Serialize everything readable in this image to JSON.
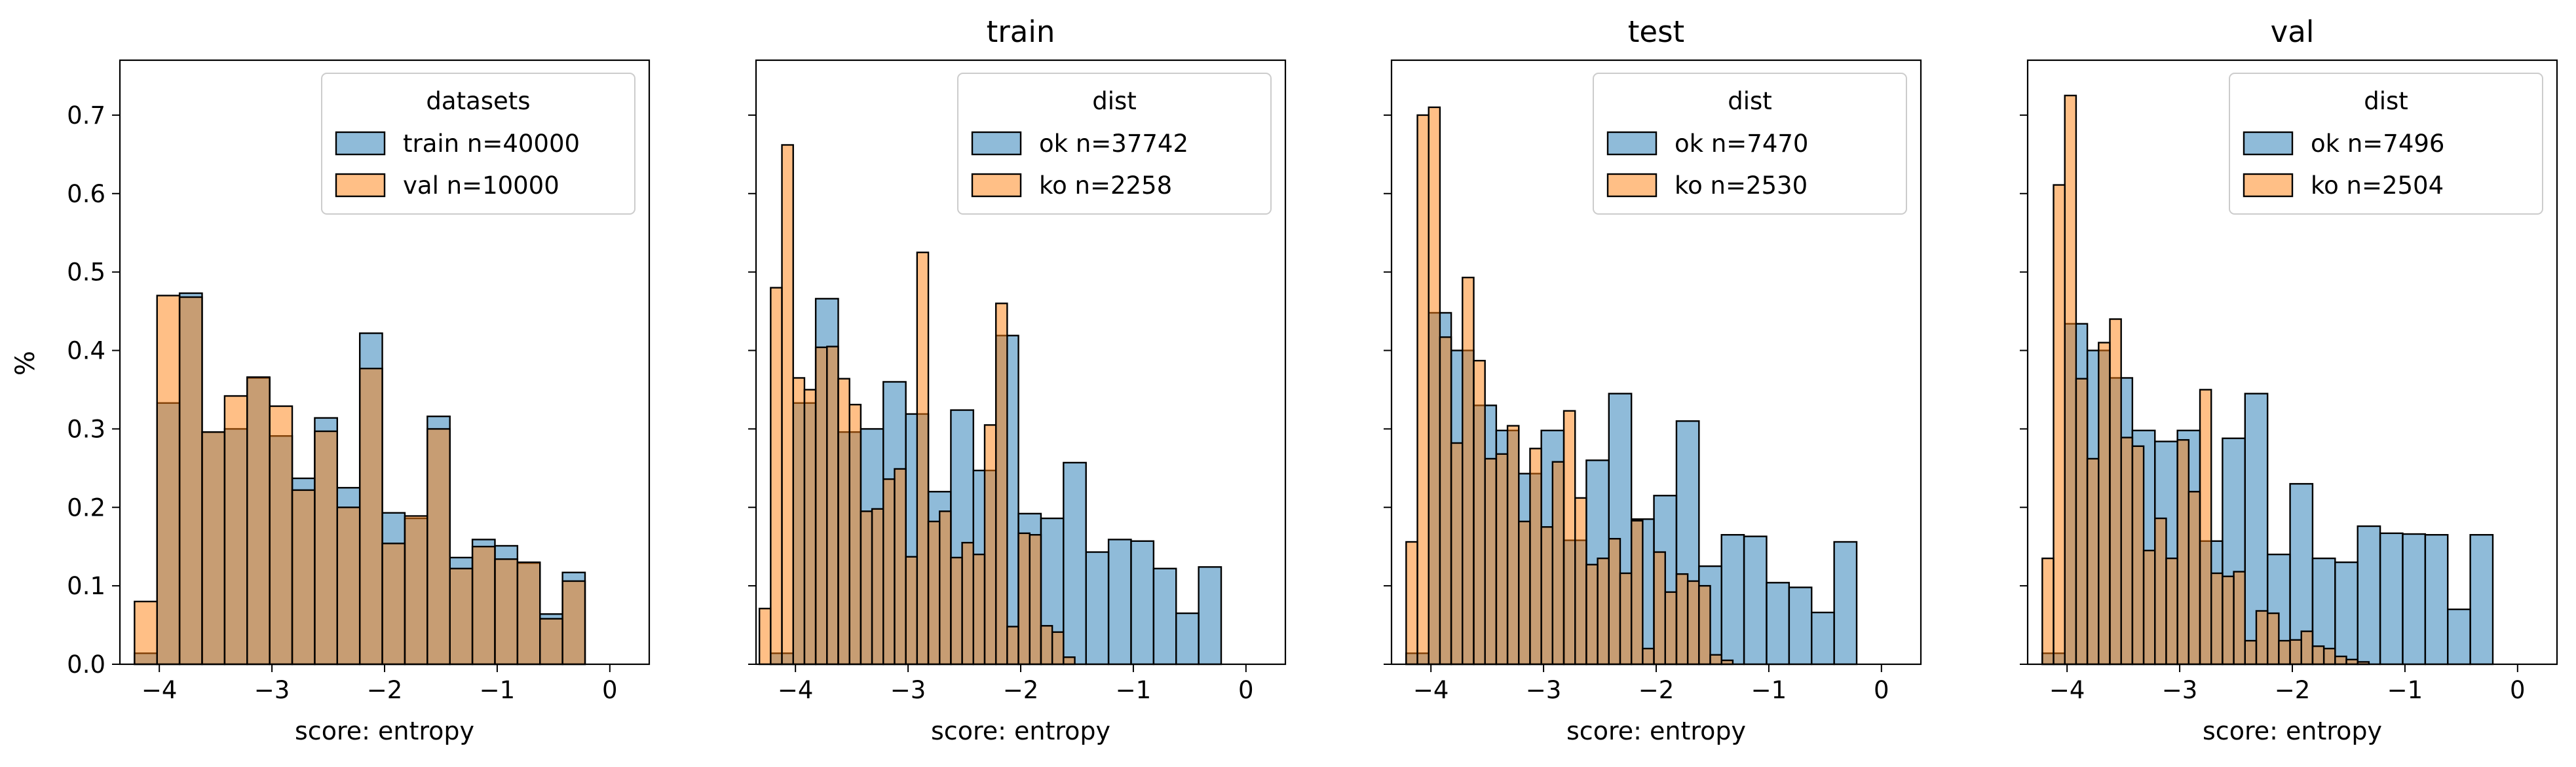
{
  "figure": {
    "ylabel": "%",
    "xlabel": "score: entropy"
  },
  "colors": {
    "blue": "#1f77b4",
    "orange": "#ff7f0e",
    "overlap": "#b98a64",
    "edge": "#000000"
  },
  "chart_data": [
    {
      "type": "bar",
      "title": "",
      "xlabel": "score: entropy",
      "ylabel": "%",
      "xlim": [
        -4.35,
        0.35
      ],
      "ylim": [
        0,
        0.77
      ],
      "xticks": [
        "−4",
        "−3",
        "−2",
        "−1",
        "0"
      ],
      "yticks": [
        "0.0",
        "0.1",
        "0.2",
        "0.3",
        "0.4",
        "0.5",
        "0.6",
        "0.7"
      ],
      "legend": {
        "title": "datasets",
        "placement": "top-right",
        "entries": [
          {
            "label": "train n=40000",
            "color": "blue"
          },
          {
            "label": "val n=10000",
            "color": "orange"
          }
        ]
      },
      "series": [
        {
          "name": "train n=40000",
          "bin_start": -4.22,
          "bin_width": 0.2,
          "values": [
            0.014,
            0.333,
            0.473,
            0.296,
            0.3,
            0.365,
            0.291,
            0.237,
            0.314,
            0.225,
            0.422,
            0.193,
            0.186,
            0.316,
            0.136,
            0.159,
            0.151,
            0.129,
            0.064,
            0.117
          ]
        },
        {
          "name": "val n=10000",
          "bin_start": -4.22,
          "bin_width": 0.2,
          "values": [
            0.08,
            0.47,
            0.468,
            0.296,
            0.342,
            0.366,
            0.329,
            0.222,
            0.297,
            0.2,
            0.377,
            0.154,
            0.189,
            0.3,
            0.122,
            0.15,
            0.134,
            0.13,
            0.058,
            0.106
          ]
        }
      ]
    },
    {
      "type": "bar",
      "title": "train",
      "xlabel": "score: entropy",
      "xlim": [
        -4.35,
        0.35
      ],
      "ylim": [
        0,
        0.77
      ],
      "xticks": [
        "−4",
        "−3",
        "−2",
        "−1",
        "0"
      ],
      "legend": {
        "title": "dist",
        "placement": "top-right",
        "entries": [
          {
            "label": "ok n=37742",
            "color": "blue"
          },
          {
            "label": "ko n=2258",
            "color": "orange"
          }
        ]
      },
      "series": [
        {
          "name": "ok n=37742",
          "bin_start": -4.22,
          "bin_width": 0.2,
          "values": [
            0.014,
            0.333,
            0.466,
            0.296,
            0.3,
            0.36,
            0.319,
            0.22,
            0.324,
            0.247,
            0.419,
            0.192,
            0.186,
            0.257,
            0.143,
            0.159,
            0.157,
            0.122,
            0.065,
            0.124
          ]
        },
        {
          "name": "ko n=2258",
          "bin_start": -4.32,
          "bin_width": 0.1,
          "values": [
            0.071,
            0.48,
            0.662,
            0.365,
            0.35,
            0.404,
            0.405,
            0.364,
            0.331,
            0.195,
            0.198,
            0.236,
            0.249,
            0.137,
            0.525,
            0.182,
            0.195,
            0.136,
            0.155,
            0.14,
            0.305,
            0.46,
            0.048,
            0.167,
            0.165,
            0.049,
            0.041,
            0.009
          ]
        }
      ]
    },
    {
      "type": "bar",
      "title": "test",
      "xlabel": "score: entropy",
      "xlim": [
        -4.35,
        0.35
      ],
      "ylim": [
        0,
        0.77
      ],
      "xticks": [
        "−4",
        "−3",
        "−2",
        "−1",
        "0"
      ],
      "legend": {
        "title": "dist",
        "placement": "top-right",
        "entries": [
          {
            "label": "ok n=7470",
            "color": "blue"
          },
          {
            "label": "ko n=2530",
            "color": "orange"
          }
        ]
      },
      "series": [
        {
          "name": "ok n=7470",
          "bin_start": -4.22,
          "bin_width": 0.2,
          "values": [
            0.014,
            0.448,
            0.4,
            0.33,
            0.298,
            0.243,
            0.298,
            0.158,
            0.26,
            0.345,
            0.185,
            0.215,
            0.31,
            0.125,
            0.165,
            0.163,
            0.104,
            0.098,
            0.066,
            0.156
          ]
        },
        {
          "name": "ko n=2530",
          "bin_start": -4.22,
          "bin_width": 0.1,
          "values": [
            0.156,
            0.7,
            0.71,
            0.417,
            0.282,
            0.493,
            0.387,
            0.262,
            0.268,
            0.304,
            0.182,
            0.275,
            0.175,
            0.258,
            0.323,
            0.212,
            0.127,
            0.135,
            0.16,
            0.116,
            0.183,
            0.02,
            0.143,
            0.092,
            0.115,
            0.106,
            0.1,
            0.012,
            0.005
          ]
        }
      ]
    },
    {
      "type": "bar",
      "title": "val",
      "xlabel": "score: entropy",
      "xlim": [
        -4.35,
        0.35
      ],
      "ylim": [
        0,
        0.77
      ],
      "xticks": [
        "−4",
        "−3",
        "−2",
        "−1",
        "0"
      ],
      "legend": {
        "title": "dist",
        "placement": "top-right",
        "entries": [
          {
            "label": "ok n=7496",
            "color": "blue"
          },
          {
            "label": "ko n=2504",
            "color": "orange"
          }
        ]
      },
      "series": [
        {
          "name": "ok n=7496",
          "bin_start": -4.22,
          "bin_width": 0.2,
          "values": [
            0.014,
            0.434,
            0.4,
            0.365,
            0.298,
            0.284,
            0.298,
            0.157,
            0.288,
            0.345,
            0.14,
            0.23,
            0.135,
            0.13,
            0.176,
            0.167,
            0.166,
            0.165,
            0.07,
            0.165
          ]
        },
        {
          "name": "ko n=2504",
          "bin_start": -4.22,
          "bin_width": 0.1,
          "values": [
            0.135,
            0.611,
            0.725,
            0.364,
            0.262,
            0.41,
            0.44,
            0.289,
            0.278,
            0.145,
            0.186,
            0.135,
            0.286,
            0.22,
            0.35,
            0.116,
            0.112,
            0.118,
            0.03,
            0.068,
            0.065,
            0.03,
            0.031,
            0.042,
            0.023,
            0.02,
            0.01,
            0.006,
            0.003
          ]
        }
      ]
    }
  ]
}
